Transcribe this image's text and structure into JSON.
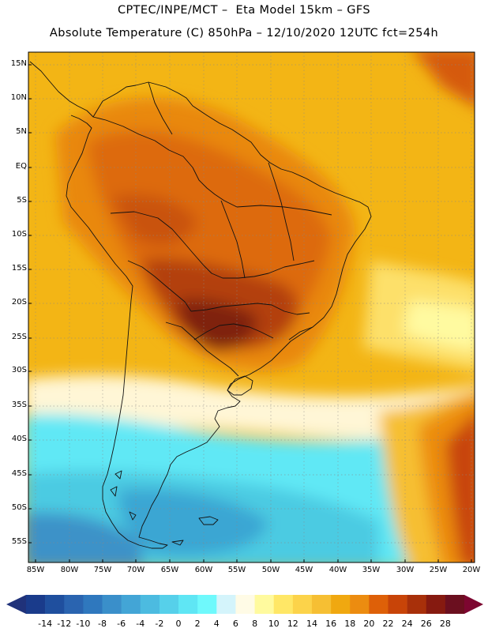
{
  "header": {
    "line1": "CPTEC/INPE/MCT –  Eta Model 15km – GFS",
    "line2": "Absolute Temperature (C) 850hPa – 12/10/2020 12UTC fct=254h"
  },
  "map": {
    "region": "South America",
    "lat_labels": [
      "15N",
      "10N",
      "5N",
      "EQ",
      "5S",
      "10S",
      "15S",
      "20S",
      "25S",
      "30S",
      "35S",
      "40S",
      "45S",
      "50S",
      "55S"
    ],
    "lon_labels": [
      "85W",
      "80W",
      "75W",
      "70W",
      "65W",
      "60W",
      "55W",
      "50W",
      "45W",
      "40W",
      "35W",
      "30W",
      "25W",
      "20W"
    ]
  },
  "colorbar": {
    "unit": "C",
    "labels": [
      "-14",
      "-12",
      "-10",
      "-8",
      "-6",
      "-4",
      "-2",
      "0",
      "2",
      "4",
      "6",
      "8",
      "10",
      "12",
      "14",
      "16",
      "18",
      "20",
      "22",
      "24",
      "26",
      "28"
    ],
    "colors": [
      "#1a3b8b",
      "#1f4f9e",
      "#2a64b0",
      "#2f78be",
      "#3a8fca",
      "#43a5d6",
      "#4cbbe0",
      "#56d0ea",
      "#5fe6f4",
      "#6ff9fc",
      "#d4f4fb",
      "#fffbe6",
      "#fffa9e",
      "#ffe766",
      "#fcd34a",
      "#f6bf33",
      "#f0a810",
      "#ec8c10",
      "#de6008",
      "#c84408",
      "#a8300a",
      "#861a10",
      "#6b0f1f"
    ],
    "end_low": "#20327a",
    "end_high": "#7d0630"
  }
}
